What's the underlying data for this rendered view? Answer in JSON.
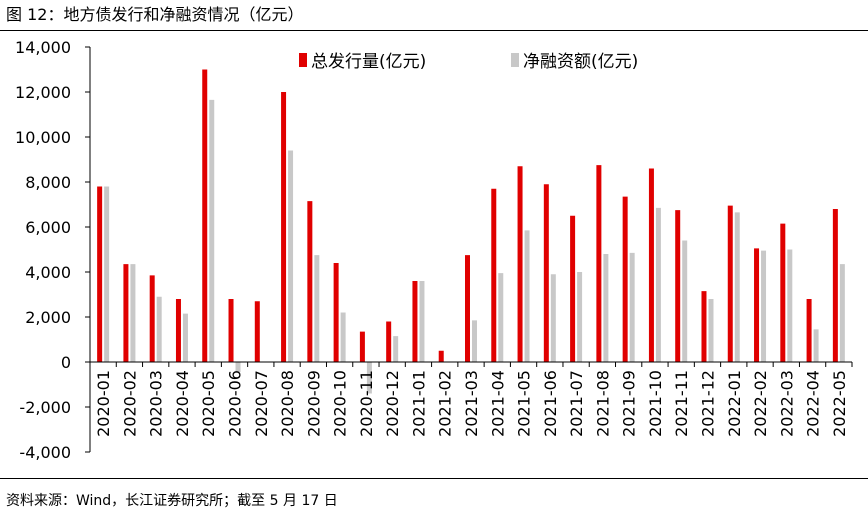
{
  "figure": {
    "title": "图 12：地方债发行和净融资情况（亿元）",
    "source": "资料来源：Wind，长江证券研究所；截至 5 月 17 日"
  },
  "colors": {
    "issuance": "#e00000",
    "net_financing": "#c8c8c8",
    "axis": "#000000"
  },
  "chart_data": {
    "type": "bar",
    "title": "",
    "xlabel": "",
    "ylabel": "",
    "ylim": [
      -4000,
      14000
    ],
    "yticks": [
      -4000,
      -2000,
      0,
      2000,
      4000,
      6000,
      8000,
      10000,
      12000,
      14000
    ],
    "ytick_labels": [
      "-4,000",
      "-2,000",
      "0",
      "2,000",
      "4,000",
      "6,000",
      "8,000",
      "10,000",
      "12,000",
      "14,000"
    ],
    "grid": false,
    "legend_position": "top-right",
    "categories": [
      "2020-01",
      "2020-02",
      "2020-03",
      "2020-04",
      "2020-05",
      "2020-06",
      "2020-07",
      "2020-08",
      "2020-09",
      "2020-10",
      "2020-11",
      "2020-12",
      "2021-01",
      "2021-02",
      "2021-03",
      "2021-04",
      "2021-05",
      "2021-06",
      "2021-07",
      "2021-08",
      "2021-09",
      "2021-10",
      "2021-11",
      "2021-12",
      "2022-01",
      "2022-02",
      "2022-03",
      "2022-04",
      "2022-05"
    ],
    "series": [
      {
        "name": "总发行量(亿元)",
        "values": [
          7800,
          4350,
          3850,
          2800,
          13000,
          2800,
          2700,
          12000,
          7150,
          4400,
          1350,
          1800,
          3600,
          500,
          4750,
          7700,
          8700,
          7900,
          6500,
          8750,
          7350,
          8600,
          6750,
          3150,
          6950,
          5050,
          6150,
          2800,
          6800
        ]
      },
      {
        "name": "净融资额(亿元)",
        "values": [
          7800,
          4350,
          2900,
          2150,
          11650,
          -450,
          0,
          9400,
          4750,
          2200,
          -1400,
          1150,
          3600,
          0,
          1850,
          3950,
          5850,
          3900,
          4000,
          4800,
          4850,
          6850,
          5400,
          2800,
          6650,
          4950,
          5000,
          1450,
          4350
        ]
      }
    ]
  }
}
